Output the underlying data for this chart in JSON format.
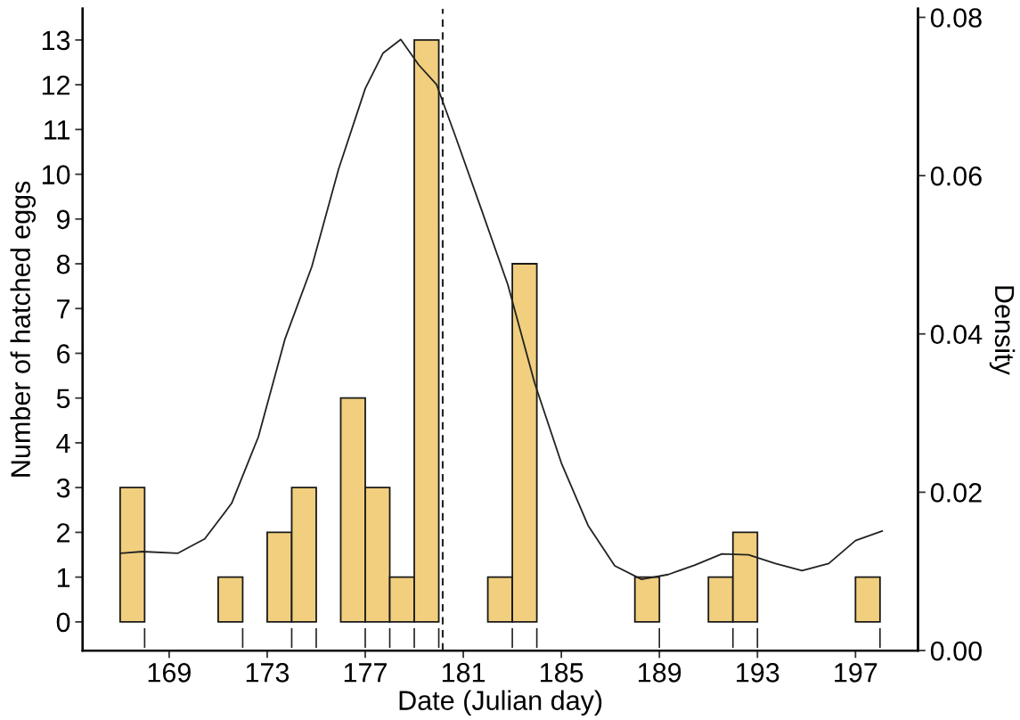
{
  "chart_data": {
    "type": "histogram",
    "xlabel": "Date (Julian day)",
    "ylabel": "Number of hatched eggs",
    "y2label": "Density",
    "xlim": [
      165.47,
      199.55
    ],
    "xticks": [
      169,
      173,
      177,
      181,
      185,
      189,
      193,
      197
    ],
    "ylim": [
      -0.64,
      13.7
    ],
    "yticks": [
      0,
      1,
      2,
      3,
      4,
      5,
      6,
      7,
      8,
      9,
      10,
      11,
      12,
      13
    ],
    "y2lim": [
      0,
      0.0811
    ],
    "y2ticks": [
      {
        "value": 0,
        "label": "0.00"
      },
      {
        "value": 0.02,
        "label": "0.02"
      },
      {
        "value": 0.04,
        "label": "0.04"
      },
      {
        "value": 0.06,
        "label": "0.06"
      },
      {
        "value": 0.08,
        "label": "0.08"
      }
    ],
    "grid": false,
    "legend": false,
    "series": [
      {
        "color": "#f1cf7e",
        "bins": [
          167,
          168,
          169,
          170,
          171,
          172,
          173,
          174,
          175,
          176,
          177,
          178,
          179,
          180,
          181,
          182,
          183,
          184,
          185,
          186,
          187,
          188,
          189,
          190,
          191,
          192,
          193,
          194,
          195,
          196,
          197,
          198
        ],
        "values": [
          3,
          0,
          0,
          0,
          1,
          0,
          2,
          3,
          0,
          5,
          3,
          1,
          13,
          0,
          0,
          1,
          8,
          0,
          0,
          0,
          0,
          1,
          0,
          0,
          1,
          2,
          0,
          0,
          0,
          0,
          1
        ]
      },
      {
        "type": "line",
        "axis": "y2",
        "color": "#222222",
        "line_style": "solid",
        "x": [
          167.04,
          167.91,
          169.36,
          170.45,
          171.55,
          172.64,
          173.73,
          174.82,
          175.91,
          177.0,
          177.73,
          178.45,
          179.18,
          179.91,
          180.64,
          181.73,
          182.82,
          183.91,
          185.0,
          186.09,
          187.18,
          188.27,
          189.36,
          190.45,
          191.55,
          192.64,
          193.73,
          194.82,
          195.91,
          197.0,
          198.09
        ],
        "values": [
          0.0123,
          0.0125,
          0.0123,
          0.0141,
          0.0186,
          0.027,
          0.0394,
          0.0485,
          0.0608,
          0.071,
          0.0755,
          0.0772,
          0.074,
          0.0715,
          0.0653,
          0.0558,
          0.0462,
          0.0338,
          0.0237,
          0.0158,
          0.0107,
          0.009,
          0.0096,
          0.0108,
          0.0122,
          0.0121,
          0.011,
          0.0101,
          0.011,
          0.0139,
          0.0151
        ]
      },
      {
        "type": "bar",
        "color": "#222222",
        "x": [
          168,
          172,
          174,
          175,
          177,
          178,
          179,
          180,
          183,
          184,
          189,
          192,
          193,
          198
        ],
        "base": [
          -0.58,
          -0.58,
          -0.58,
          -0.58,
          -0.58,
          -0.58,
          -0.58,
          -0.58,
          -0.58,
          -0.58,
          -0.58,
          -0.58,
          -0.58,
          -0.58
        ],
        "values": [
          0.44,
          0.44,
          0.44,
          0.44,
          0.44,
          0.44,
          0.44,
          0.44,
          0.44,
          0.44,
          0.44,
          0.44,
          0.44,
          0.44
        ]
      }
    ],
    "ref_lines": [
      {
        "axis": "x",
        "value": 180.16,
        "color": "#222222",
        "line_style": "dashed"
      }
    ]
  }
}
